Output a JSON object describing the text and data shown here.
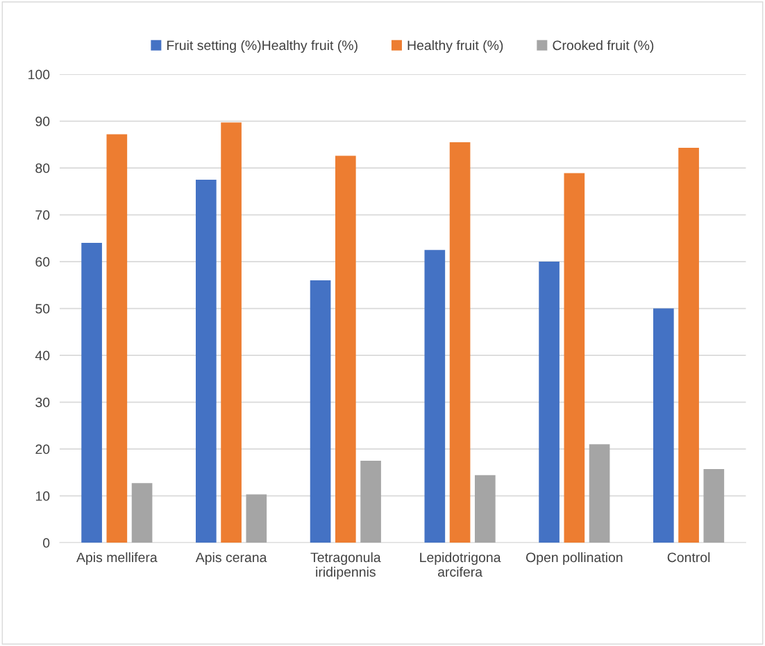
{
  "chart_data": {
    "type": "bar",
    "categories": [
      "Apis mellifera",
      "Apis cerana",
      "Tetragonula\niridipennis",
      "Lepidotrigona\narcifera",
      "Open pollination",
      "Control"
    ],
    "series": [
      {
        "name": "Fruit setting (%)Healthy fruit (%)",
        "color": "#4472c4",
        "values": [
          64.0,
          77.5,
          56.0,
          62.5,
          60.0,
          50.0
        ]
      },
      {
        "name": "Healthy fruit (%)",
        "color": "#ed7d31",
        "values": [
          87.2,
          89.7,
          82.6,
          85.5,
          78.9,
          84.3
        ]
      },
      {
        "name": "Crooked fruit (%)",
        "color": "#a5a5a5",
        "values": [
          12.7,
          10.3,
          17.5,
          14.4,
          21.0,
          15.7
        ]
      }
    ],
    "ylim": [
      0,
      100
    ],
    "yticks": [
      0,
      10,
      20,
      30,
      40,
      50,
      60,
      70,
      80,
      90,
      100
    ],
    "grid": "y",
    "legend": "top"
  }
}
